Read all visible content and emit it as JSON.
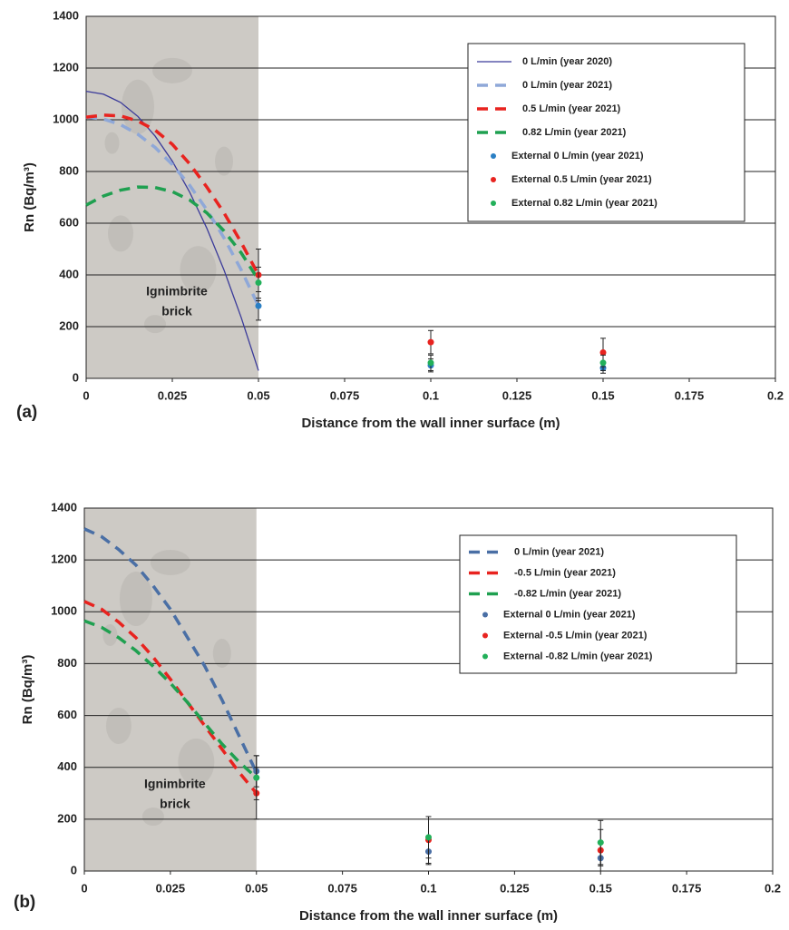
{
  "chart_data": [
    {
      "type": "line",
      "panel_label": "(a)",
      "x_label": "Distance from the wall inner surface (m)",
      "y_label": "Rn (Bq/m³)",
      "annotation": [
        "Ignimbrite",
        "brick"
      ],
      "xlim": [
        0,
        0.2
      ],
      "xticks": [
        0,
        0.025,
        0.05,
        0.075,
        0.1,
        0.125,
        0.15,
        0.175,
        0.2
      ],
      "ylim": [
        0,
        1400
      ],
      "yticks": [
        0,
        200,
        400,
        600,
        800,
        1000,
        1200,
        1400
      ],
      "grid": true,
      "legend": "upper right",
      "shade_xlim": [
        0,
        0.05
      ],
      "series": [
        {
          "name": "0 L/min (year 2020)",
          "color": "#3b3b9a",
          "style": "solid",
          "x": [
            0,
            0.005,
            0.01,
            0.015,
            0.02,
            0.025,
            0.03,
            0.035,
            0.04,
            0.045,
            0.05
          ],
          "values": [
            1110,
            1099,
            1067,
            1013,
            937,
            840,
            721,
            581,
            419,
            235,
            30
          ]
        },
        {
          "name": "0 L/min (year 2021)",
          "color": "#8fa8d8",
          "style": "dashed",
          "x": [
            0,
            0.005,
            0.01,
            0.015,
            0.02,
            0.025,
            0.03,
            0.035,
            0.04,
            0.045,
            0.05
          ],
          "values": [
            1010,
            1003,
            981,
            944,
            893,
            827,
            747,
            652,
            543,
            419,
            280
          ]
        },
        {
          "name": "0.5 L/min (year 2021)",
          "color": "#e8231f",
          "style": "dashed",
          "x": [
            0,
            0.005,
            0.01,
            0.015,
            0.02,
            0.025,
            0.03,
            0.035,
            0.04,
            0.045,
            0.05
          ],
          "values": [
            1010,
            1018,
            1015,
            995,
            960,
            905,
            830,
            740,
            640,
            525,
            400
          ]
        },
        {
          "name": "0.82 L/min (year 2021)",
          "color": "#1fa050",
          "style": "dashed",
          "x": [
            0,
            0.005,
            0.01,
            0.015,
            0.02,
            0.025,
            0.03,
            0.035,
            0.04,
            0.045,
            0.05
          ],
          "values": [
            670,
            705,
            728,
            740,
            738,
            722,
            690,
            640,
            570,
            485,
            380
          ]
        },
        {
          "name": "External 0 L/min (year 2021)",
          "color": "#2a7fc4",
          "style": "points",
          "x": [
            0.05,
            0.1,
            0.15
          ],
          "values": [
            280,
            50,
            40
          ],
          "errors": [
            55,
            25,
            20
          ]
        },
        {
          "name": "External 0.5 L/min (year 2021)",
          "color": "#e8231f",
          "style": "points",
          "x": [
            0.05,
            0.1,
            0.15
          ],
          "values": [
            400,
            140,
            100
          ],
          "errors": [
            100,
            45,
            55
          ]
        },
        {
          "name": "External 0.82 L/min (year 2021)",
          "color": "#22b05a",
          "style": "points",
          "x": [
            0.05,
            0.1,
            0.15
          ],
          "values": [
            370,
            60,
            60
          ],
          "errors": [
            60,
            30,
            30
          ]
        }
      ]
    },
    {
      "type": "line",
      "panel_label": "(b)",
      "x_label": "Distance from the wall inner surface (m)",
      "y_label": "Rn (Bq/m³)",
      "annotation": [
        "Ignimbrite",
        "brick"
      ],
      "xlim": [
        0,
        0.2
      ],
      "xticks": [
        0,
        0.025,
        0.05,
        0.075,
        0.1,
        0.125,
        0.15,
        0.175,
        0.2
      ],
      "ylim": [
        0,
        1400
      ],
      "yticks": [
        0,
        200,
        400,
        600,
        800,
        1000,
        1200,
        1400
      ],
      "grid": true,
      "legend": "upper right",
      "shade_xlim": [
        0,
        0.05
      ],
      "series": [
        {
          "name": "0 L/min (year 2021)",
          "color": "#4a6fa5",
          "style": "dashed",
          "x": [
            0,
            0.005,
            0.01,
            0.015,
            0.02,
            0.025,
            0.03,
            0.035,
            0.04,
            0.045,
            0.05
          ],
          "values": [
            1320,
            1290,
            1240,
            1180,
            1100,
            1010,
            900,
            790,
            660,
            520,
            380
          ]
        },
        {
          "name": "-0.5 L/min (year 2021)",
          "color": "#e8231f",
          "style": "dashed",
          "x": [
            0,
            0.005,
            0.01,
            0.015,
            0.02,
            0.025,
            0.03,
            0.035,
            0.04,
            0.045,
            0.05
          ],
          "values": [
            1040,
            1010,
            960,
            900,
            825,
            740,
            650,
            560,
            470,
            380,
            300
          ]
        },
        {
          "name": "-0.82 L/min (year 2021)",
          "color": "#1fa050",
          "style": "dashed",
          "x": [
            0,
            0.005,
            0.01,
            0.015,
            0.02,
            0.025,
            0.03,
            0.035,
            0.04,
            0.045,
            0.05
          ],
          "values": [
            965,
            940,
            900,
            850,
            790,
            725,
            650,
            570,
            490,
            420,
            360
          ]
        },
        {
          "name": "External 0 L/min (year 2021)",
          "color": "#4a6fa5",
          "style": "points",
          "x": [
            0.05,
            0.1,
            0.15
          ],
          "values": [
            385,
            75,
            50
          ],
          "errors": [
            60,
            50,
            30
          ]
        },
        {
          "name": "External -0.5 L/min (year 2021)",
          "color": "#e8231f",
          "style": "points",
          "x": [
            0.05,
            0.1,
            0.15
          ],
          "values": [
            300,
            120,
            80
          ],
          "errors": [
            100,
            90,
            80
          ]
        },
        {
          "name": "External -0.82 L/min (year 2021)",
          "color": "#22b05a",
          "style": "points",
          "x": [
            0.05,
            0.1,
            0.15
          ],
          "values": [
            360,
            130,
            110
          ],
          "errors": [
            85,
            80,
            85
          ]
        }
      ]
    }
  ]
}
